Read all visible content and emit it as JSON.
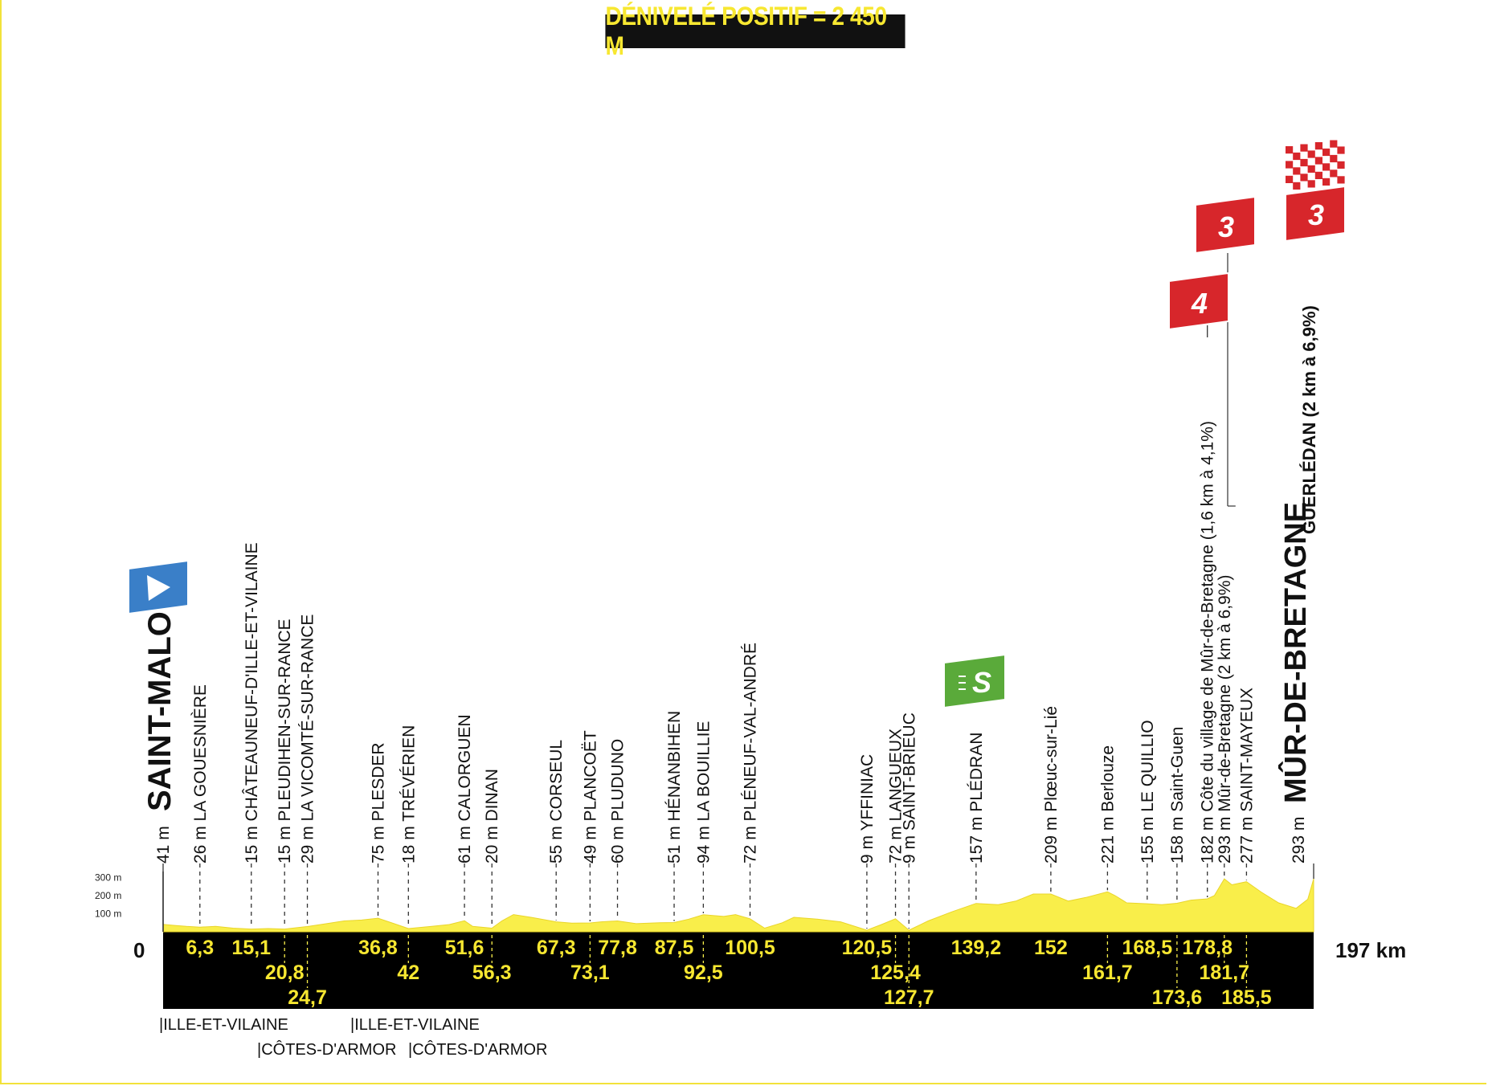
{
  "header": {
    "title": "DÉNIVELÉ POSITIF = 2 450 M"
  },
  "axis": {
    "y_ticks": [
      "300 m",
      "200 m",
      "100 m"
    ],
    "start_km": "0",
    "end_km": "197 km"
  },
  "departments": [
    {
      "label": "|ILLE-ET-VILAINE"
    },
    {
      "label": "|CÔTES-D'ARMOR"
    },
    {
      "label": "|ILLE-ET-VILAINE"
    },
    {
      "label": "|CÔTES-D'ARMOR"
    }
  ],
  "badges": {
    "start_flag_color": "#3a7fc8",
    "sprint_label": "S",
    "sprint_color": "#5aaa3a",
    "climb_color": "#d7262b",
    "climb1_category": "4",
    "climb2_category": "3",
    "climb3_category": "3"
  },
  "chart_data": {
    "type": "area",
    "xlim": [
      0,
      197
    ],
    "ylim": [
      0,
      300
    ],
    "profile": [
      [
        0,
        41
      ],
      [
        2,
        35
      ],
      [
        4,
        30
      ],
      [
        6.3,
        26
      ],
      [
        9,
        30
      ],
      [
        12,
        20
      ],
      [
        15.1,
        15
      ],
      [
        18,
        18
      ],
      [
        20.8,
        15
      ],
      [
        24.7,
        29
      ],
      [
        28,
        45
      ],
      [
        31,
        60
      ],
      [
        34,
        65
      ],
      [
        36.8,
        75
      ],
      [
        40,
        40
      ],
      [
        42,
        18
      ],
      [
        46,
        30
      ],
      [
        49,
        40
      ],
      [
        51.6,
        61
      ],
      [
        53,
        30
      ],
      [
        56.3,
        20
      ],
      [
        58,
        60
      ],
      [
        60,
        95
      ],
      [
        63,
        80
      ],
      [
        67.3,
        55
      ],
      [
        70,
        48
      ],
      [
        73.1,
        49
      ],
      [
        75,
        55
      ],
      [
        77.8,
        60
      ],
      [
        81,
        45
      ],
      [
        85,
        50
      ],
      [
        87.5,
        51
      ],
      [
        90,
        70
      ],
      [
        92.5,
        94
      ],
      [
        96,
        85
      ],
      [
        98,
        95
      ],
      [
        100.5,
        72
      ],
      [
        103,
        20
      ],
      [
        106,
        50
      ],
      [
        108,
        80
      ],
      [
        112,
        70
      ],
      [
        116,
        55
      ],
      [
        120.5,
        9
      ],
      [
        123,
        40
      ],
      [
        125.4,
        72
      ],
      [
        127.7,
        9
      ],
      [
        131,
        60
      ],
      [
        135,
        110
      ],
      [
        139.2,
        157
      ],
      [
        143,
        150
      ],
      [
        146,
        170
      ],
      [
        149,
        209
      ],
      [
        152,
        209
      ],
      [
        155,
        170
      ],
      [
        158,
        190
      ],
      [
        161.7,
        221
      ],
      [
        163,
        200
      ],
      [
        165,
        160
      ],
      [
        168.5,
        155
      ],
      [
        171,
        150
      ],
      [
        173.6,
        158
      ],
      [
        176,
        175
      ],
      [
        178.8,
        182
      ],
      [
        180,
        200
      ],
      [
        181.7,
        293
      ],
      [
        183,
        260
      ],
      [
        185.5,
        277
      ],
      [
        188,
        220
      ],
      [
        191,
        160
      ],
      [
        194,
        130
      ],
      [
        196,
        180
      ],
      [
        197,
        293
      ]
    ],
    "start": {
      "km": 0,
      "alt": 41,
      "name": "SAINT-MALO",
      "alt_label": "41 m"
    },
    "finish": {
      "km": 197,
      "alt": 293,
      "name": "MÛR-DE-BRETAGNE",
      "alt_label": "293 m",
      "sub": "GUERLÉDAN (2 km à 6,9%)"
    },
    "sprint_km": 139.2,
    "climbs": [
      {
        "km": 178.8,
        "category": "4"
      },
      {
        "km": 181.7,
        "category": "3"
      },
      {
        "km": 197,
        "category": "3"
      }
    ],
    "waypoints": [
      {
        "km": 6.3,
        "km_label": "6,3",
        "row": 0,
        "name": "26 m LA GOUESNIÈRE"
      },
      {
        "km": 15.1,
        "km_label": "15,1",
        "row": 0,
        "name": "15 m CHÂTEAUNEUF-D'ILLE-ET-VILAINE"
      },
      {
        "km": 20.8,
        "km_label": "20,8",
        "row": 1,
        "name": "15 m PLEUDIHEN-SUR-RANCE"
      },
      {
        "km": 24.7,
        "km_label": "24,7",
        "row": 2,
        "name": "29 m LA VICOMTÉ-SUR-RANCE"
      },
      {
        "km": 36.8,
        "km_label": "36,8",
        "row": 0,
        "name": "75 m PLESDER"
      },
      {
        "km": 42,
        "km_label": "42",
        "row": 1,
        "name": "18 m TRÉVÉRIEN"
      },
      {
        "km": 51.6,
        "km_label": "51,6",
        "row": 0,
        "name": "61 m CALORGUEN"
      },
      {
        "km": 56.3,
        "km_label": "56,3",
        "row": 1,
        "name": "20 m DINAN"
      },
      {
        "km": 67.3,
        "km_label": "67,3",
        "row": 0,
        "name": "55 m CORSEUL"
      },
      {
        "km": 73.1,
        "km_label": "73,1",
        "row": 1,
        "name": "49 m PLANCOËT"
      },
      {
        "km": 77.8,
        "km_label": "77,8",
        "row": 0,
        "name": "60 m PLUDUNO"
      },
      {
        "km": 87.5,
        "km_label": "87,5",
        "row": 0,
        "name": "51 m HÉNANBIHEN"
      },
      {
        "km": 92.5,
        "km_label": "92,5",
        "row": 1,
        "name": "94 m LA BOUILLIE"
      },
      {
        "km": 100.5,
        "km_label": "100,5",
        "row": 0,
        "name": "72 m PLÉNEUF-VAL-ANDRÉ"
      },
      {
        "km": 120.5,
        "km_label": "120,5",
        "row": 0,
        "name": "9 m YFFINIAC"
      },
      {
        "km": 125.4,
        "km_label": "125,4",
        "row": 1,
        "name": "72 m LANGUEUX"
      },
      {
        "km": 127.7,
        "km_label": "127,7",
        "row": 2,
        "name": "9 m SAINT-BRIEUC"
      },
      {
        "km": 139.2,
        "km_label": "139,2",
        "row": 0,
        "name": "157 m PLÉDRAN"
      },
      {
        "km": 152,
        "km_label": "152",
        "row": 0,
        "name": "209 m Plœuc-sur-Lié"
      },
      {
        "km": 161.7,
        "km_label": "161,7",
        "row": 1,
        "name": "221 m Berlouze"
      },
      {
        "km": 168.5,
        "km_label": "168,5",
        "row": 0,
        "name": "155 m LE QUILLIO"
      },
      {
        "km": 173.6,
        "km_label": "173,6",
        "row": 2,
        "name": "158 m Saint-Guen"
      },
      {
        "km": 178.8,
        "km_label": "178,8",
        "row": 0,
        "name": "182 m Côte du village de Mûr-de-Bretagne (1,6 km à 4,1%)"
      },
      {
        "km": 181.7,
        "km_label": "181,7",
        "row": 1,
        "name": "293 m Mûr-de-Bretagne (2 km à 6,9%)"
      },
      {
        "km": 185.5,
        "km_label": "185,5",
        "row": 2,
        "name": "277 m SAINT-MAYEUX"
      }
    ]
  }
}
